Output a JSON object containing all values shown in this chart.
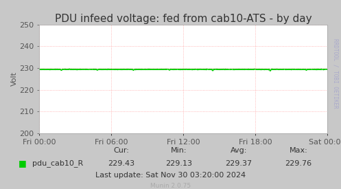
{
  "title": "PDU infeed voltage: fed from cab10-ATS - by day",
  "ylabel": "Volt",
  "bg_color": "#c8c8c8",
  "plot_bg_color": "#ffffff",
  "grid_color": "#ff9999",
  "grid_color2": "#ccccff",
  "line_color": "#00cc00",
  "line_value": 229.37,
  "line_noise": 0.35,
  "ylim": [
    200,
    250
  ],
  "yticks": [
    200,
    210,
    220,
    230,
    240,
    250
  ],
  "xtick_labels": [
    "Fri 00:00",
    "Fri 06:00",
    "Fri 12:00",
    "Fri 18:00",
    "Sat 00:00"
  ],
  "n_xticks": 5,
  "legend_label": "pdu_cab10_R",
  "legend_color": "#00cc00",
  "cur_val": "229.43",
  "min_val": "229.13",
  "avg_val": "229.37",
  "max_val": "229.76",
  "last_update": "Last update: Sat Nov 30 03:20:00 2024",
  "munin_version": "Munin 2.0.75",
  "watermark": "RRDTOOL / TOBI OETIKER",
  "title_fontsize": 11,
  "axis_fontsize": 8,
  "legend_fontsize": 8,
  "stats_fontsize": 8,
  "watermark_color": "#aaaacc"
}
